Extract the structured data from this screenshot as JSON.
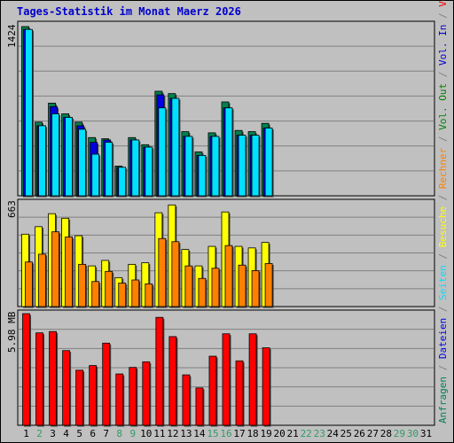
{
  "title": "Tages-Statistik im Monat Maerz 2026",
  "colors": {
    "title": "#0000cc",
    "background": "#c0c0c0",
    "frame": "#000000",
    "grid": "#808080",
    "weekday": "#000000",
    "weekend": "#339966",
    "anfragen": "#008050",
    "dateien": "#0000e0",
    "seiten": "#00e0ff",
    "besuche": "#ffff00",
    "rechner": "#ff8000",
    "vol_out": "#008000",
    "vol_in": "#0000cc",
    "volumen": "#ff0000"
  },
  "right_legend": {
    "top": [
      {
        "text": "Anfragen",
        "color_key": "anfragen"
      },
      {
        "text": "/",
        "color_key": "grid"
      },
      {
        "text": "Dateien",
        "color_key": "dateien"
      },
      {
        "text": "/",
        "color_key": "grid"
      },
      {
        "text": "Seiten",
        "color_key": "seiten"
      },
      {
        "text": "/",
        "color_key": "grid"
      },
      {
        "text": "Besuche",
        "color_key": "besuche"
      },
      {
        "text": "/",
        "color_key": "grid"
      },
      {
        "text": "Rechner",
        "color_key": "rechner"
      },
      {
        "text": "/",
        "color_key": "grid"
      },
      {
        "text": "Vol. Out",
        "color_key": "vol_out"
      },
      {
        "text": "/",
        "color_key": "grid"
      },
      {
        "text": "Vol. In",
        "color_key": "vol_in"
      },
      {
        "text": "/",
        "color_key": "grid"
      },
      {
        "text": "Volumen",
        "color_key": "volumen"
      }
    ]
  },
  "days": [
    "1",
    "2",
    "3",
    "4",
    "5",
    "6",
    "7",
    "8",
    "9",
    "10",
    "11",
    "12",
    "13",
    "14",
    "15",
    "16",
    "17",
    "18",
    "19",
    "20",
    "21",
    "22",
    "23",
    "24",
    "25",
    "26",
    "27",
    "28",
    "29",
    "30",
    "31"
  ],
  "weekend_days": [
    1,
    7,
    8,
    14,
    15,
    21,
    22,
    28,
    29
  ],
  "chart_data": [
    {
      "type": "bar",
      "panel": "hits",
      "ymax_label": "1424",
      "ymax": 1424,
      "categories": [
        "1",
        "2",
        "3",
        "4",
        "5",
        "6",
        "7",
        "8",
        "9",
        "10",
        "11",
        "12",
        "13",
        "14",
        "15",
        "16",
        "17",
        "18",
        "19"
      ],
      "series": [
        {
          "name": "Anfragen",
          "color_key": "anfragen",
          "values": [
            1424,
            620,
            780,
            690,
            620,
            490,
            480,
            250,
            490,
            430,
            880,
            860,
            540,
            370,
            530,
            790,
            550,
            540,
            610
          ]
        },
        {
          "name": "Dateien",
          "color_key": "dateien",
          "values": [
            1400,
            590,
            750,
            660,
            590,
            450,
            470,
            240,
            470,
            410,
            850,
            820,
            500,
            340,
            500,
            740,
            510,
            510,
            570
          ]
        },
        {
          "name": "Seiten",
          "color_key": "seiten",
          "values": [
            1400,
            590,
            690,
            660,
            560,
            350,
            450,
            240,
            470,
            410,
            740,
            820,
            500,
            340,
            500,
            740,
            510,
            510,
            570
          ]
        }
      ]
    },
    {
      "type": "bar",
      "panel": "visits",
      "ymax_label": "663",
      "ymax": 663,
      "categories": [
        "1",
        "2",
        "3",
        "4",
        "5",
        "6",
        "7",
        "8",
        "9",
        "10",
        "11",
        "12",
        "13",
        "14",
        "15",
        "16",
        "17",
        "18",
        "19"
      ],
      "series": [
        {
          "name": "Besuche",
          "color_key": "besuche",
          "values": [
            463,
            511,
            594,
            565,
            453,
            260,
            295,
            185,
            270,
            280,
            600,
            650,
            365,
            260,
            385,
            605,
            385,
            375,
            410
          ]
        },
        {
          "name": "Rechner",
          "color_key": "rechner",
          "values": [
            285,
            335,
            478,
            445,
            270,
            160,
            225,
            150,
            170,
            145,
            435,
            415,
            260,
            180,
            245,
            390,
            265,
            230,
            275
          ]
        }
      ]
    },
    {
      "type": "bar",
      "panel": "volume",
      "ymax_label": "5.98 MB",
      "ymax": 5.98,
      "unit": "MB",
      "categories": [
        "1",
        "2",
        "3",
        "4",
        "5",
        "6",
        "7",
        "8",
        "9",
        "10",
        "11",
        "12",
        "13",
        "14",
        "15",
        "16",
        "17",
        "18",
        "19"
      ],
      "series": [
        {
          "name": "Volumen",
          "color_key": "volumen",
          "values": [
            5.98,
            4.95,
            5.02,
            4.0,
            2.95,
            3.2,
            4.4,
            2.75,
            3.1,
            3.4,
            5.78,
            4.75,
            2.7,
            2.0,
            3.7,
            4.9,
            3.45,
            4.9,
            4.15
          ]
        }
      ]
    }
  ]
}
